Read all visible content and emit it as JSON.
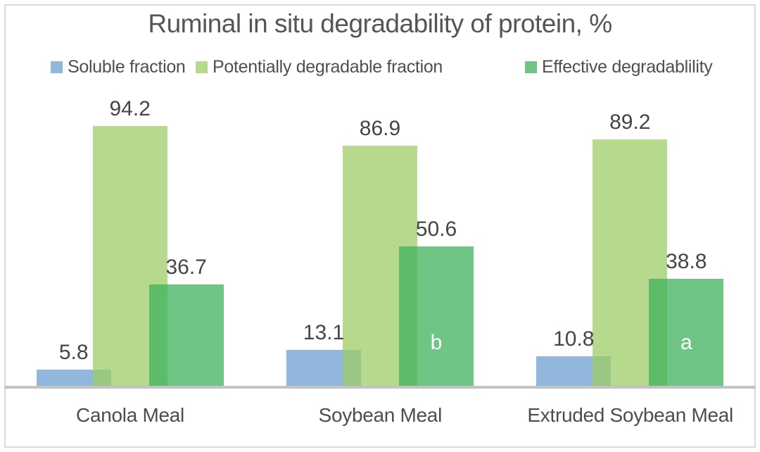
{
  "chart": {
    "title": "Ruminal in situ degradability of protein, %"
  },
  "chart_data": {
    "type": "bar",
    "title": "Ruminal in situ degradability of protein, %",
    "categories": [
      "Canola Meal",
      "Soybean Meal",
      "Extruded Soybean Meal"
    ],
    "series": [
      {
        "name": "Soluble fraction",
        "color": "#92b7dc",
        "fill": "rgba(110,159,208,0.75)",
        "values": [
          5.8,
          13.1,
          10.8
        ]
      },
      {
        "name": "Potentially degradable fraction",
        "color": "#b6d98e",
        "fill": "rgba(158,204,104,0.75)",
        "values": [
          94.2,
          86.9,
          89.2
        ]
      },
      {
        "name": "Effective degradablility",
        "color": "#6ec584",
        "fill": "rgba(62,178,91,0.75)",
        "values": [
          36.7,
          50.6,
          38.8
        ]
      }
    ],
    "data_labels": [
      "5.8",
      "94.2",
      "36.7",
      "13.1",
      "86.9",
      "50.6",
      "10.8",
      "89.2",
      "38.8"
    ],
    "annotations": [
      {
        "category_index": 1,
        "series_index": 2,
        "text": "b"
      },
      {
        "category_index": 2,
        "series_index": 2,
        "text": "a"
      }
    ],
    "ylim": [
      0,
      110
    ],
    "grid": false,
    "legend_position": "top",
    "x_baseline_color": "#c3c3c3",
    "text_color": "#4d4d4d"
  }
}
